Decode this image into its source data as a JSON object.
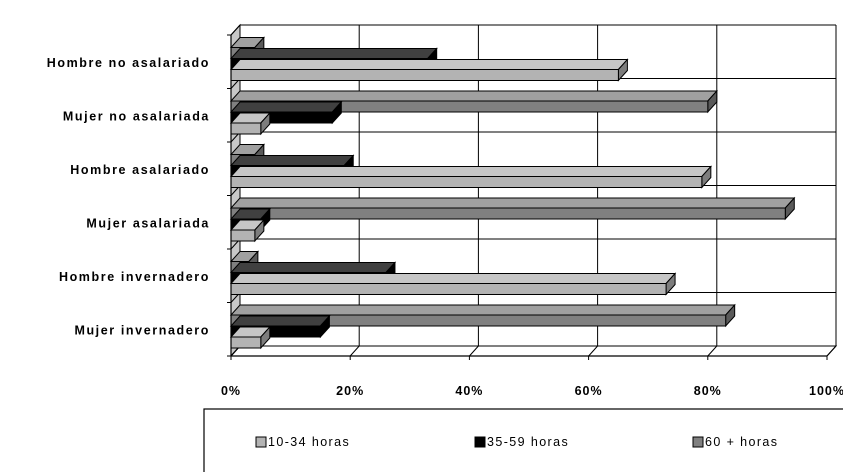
{
  "chart_data": {
    "type": "bar",
    "orientation": "horizontal",
    "stacking": "clustered",
    "style": "3d",
    "categories": [
      "Hombre no asalariado",
      "Mujer no asalariada",
      "Hombre asalariado",
      "Mujer asalariada",
      "Hombre invernadero",
      "Mujer invernadero"
    ],
    "series": [
      {
        "name": "10-34 horas",
        "color": "#b3b3b3",
        "values": [
          65,
          5,
          79,
          4,
          73,
          5
        ]
      },
      {
        "name": "35-59 horas",
        "color": "#000000",
        "values": [
          33,
          17,
          19,
          5,
          26,
          15
        ]
      },
      {
        "name": "60 + horas",
        "color": "#808080",
        "values": [
          4,
          80,
          4,
          93,
          3,
          83
        ]
      }
    ],
    "xlim": [
      0,
      100
    ],
    "x_ticks": [
      "0%",
      "20%",
      "40%",
      "60%",
      "80%",
      "100%"
    ],
    "grid": true,
    "legend": "bottom",
    "title": "",
    "xlabel": "",
    "ylabel": ""
  }
}
